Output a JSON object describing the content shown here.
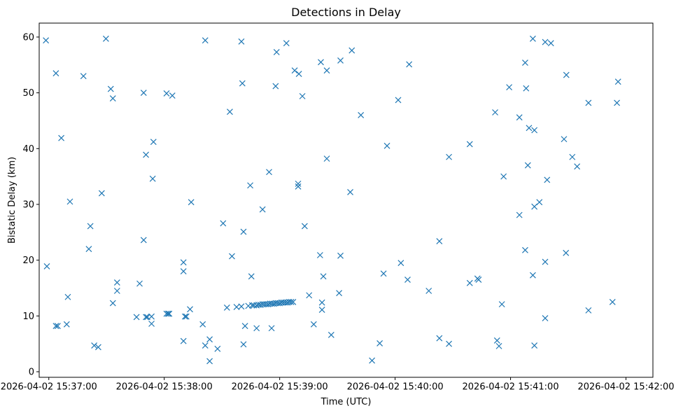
{
  "chart_data": {
    "type": "scatter",
    "title": "Detections in Delay",
    "xlabel": "Time (UTC)",
    "ylabel": "Bistatic Delay (km)",
    "x_unit": "seconds after 2026-04-02 15:37:00",
    "xlim": [
      -5,
      314
    ],
    "ylim": [
      -1,
      62.5
    ],
    "x_ticks": [
      {
        "value": 0,
        "label": "2026-04-02 15:37:00"
      },
      {
        "value": 60,
        "label": "2026-04-02 15:38:00"
      },
      {
        "value": 120,
        "label": "2026-04-02 15:39:00"
      },
      {
        "value": 180,
        "label": "2026-04-02 15:40:00"
      },
      {
        "value": 240,
        "label": "2026-04-02 15:41:00"
      },
      {
        "value": 300,
        "label": "2026-04-02 15:42:00"
      }
    ],
    "y_ticks": [
      {
        "value": 0,
        "label": "0"
      },
      {
        "value": 10,
        "label": "10"
      },
      {
        "value": 20,
        "label": "20"
      },
      {
        "value": 30,
        "label": "30"
      },
      {
        "value": 40,
        "label": "40"
      },
      {
        "value": 50,
        "label": "50"
      },
      {
        "value": 60,
        "label": "60"
      }
    ],
    "grid": false,
    "marker": "x",
    "color": "#1f77b4",
    "series": [
      {
        "name": "Detections",
        "points": [
          [
            -1.5,
            59.4
          ],
          [
            -1.0,
            18.9
          ],
          [
            3.7,
            53.5
          ],
          [
            3.7,
            8.2
          ],
          [
            4.6,
            8.2
          ],
          [
            6.5,
            41.9
          ],
          [
            9.3,
            8.5
          ],
          [
            9.9,
            13.4
          ],
          [
            11.0,
            30.5
          ],
          [
            18.0,
            53.0
          ],
          [
            20.8,
            22.0
          ],
          [
            21.6,
            26.1
          ],
          [
            23.6,
            4.7
          ],
          [
            25.7,
            4.4
          ],
          [
            27.5,
            32.0
          ],
          [
            29.7,
            59.7
          ],
          [
            32.2,
            50.7
          ],
          [
            33.3,
            49.0
          ],
          [
            33.3,
            12.3
          ],
          [
            35.5,
            16.0
          ],
          [
            35.5,
            14.5
          ],
          [
            45.6,
            9.8
          ],
          [
            47.2,
            15.8
          ],
          [
            49.3,
            50.0
          ],
          [
            49.3,
            23.6
          ],
          [
            50.5,
            38.9
          ],
          [
            50.5,
            9.8
          ],
          [
            51.2,
            9.8
          ],
          [
            53.4,
            9.9
          ],
          [
            53.4,
            8.6
          ],
          [
            54.0,
            34.6
          ],
          [
            54.4,
            41.2
          ],
          [
            61.2,
            49.9
          ],
          [
            61.2,
            10.4
          ],
          [
            62.0,
            10.4
          ],
          [
            62.6,
            10.4
          ],
          [
            64.2,
            49.5
          ],
          [
            70.0,
            19.6
          ],
          [
            70.0,
            18.0
          ],
          [
            70.0,
            5.5
          ],
          [
            70.8,
            9.9
          ],
          [
            71.5,
            9.9
          ],
          [
            73.4,
            11.2
          ],
          [
            74.0,
            30.4
          ],
          [
            80.0,
            8.5
          ],
          [
            81.3,
            59.4
          ],
          [
            81.3,
            4.7
          ],
          [
            83.6,
            5.8
          ],
          [
            83.6,
            1.9
          ],
          [
            87.7,
            4.1
          ],
          [
            90.6,
            26.6
          ],
          [
            92.6,
            11.5
          ],
          [
            94.1,
            46.6
          ],
          [
            95.2,
            20.7
          ],
          [
            97.6,
            11.6
          ],
          [
            100.1,
            11.7
          ],
          [
            100.1,
            59.2
          ],
          [
            100.6,
            51.7
          ],
          [
            101.2,
            25.1
          ],
          [
            101.2,
            4.9
          ],
          [
            102.0,
            8.2
          ],
          [
            103.7,
            11.8
          ],
          [
            104.7,
            33.4
          ],
          [
            105.3,
            17.1
          ],
          [
            105.7,
            11.9
          ],
          [
            106.6,
            11.9
          ],
          [
            108.0,
            7.8
          ],
          [
            108.0,
            11.9
          ],
          [
            109.0,
            12.0
          ],
          [
            110.0,
            12.0
          ],
          [
            111.1,
            29.1
          ],
          [
            111.1,
            12.1
          ],
          [
            112.0,
            12.1
          ],
          [
            113.0,
            12.1
          ],
          [
            114.0,
            12.1
          ],
          [
            114.5,
            35.8
          ],
          [
            115.0,
            12.2
          ],
          [
            115.8,
            7.8
          ],
          [
            116.0,
            12.2
          ],
          [
            117.0,
            12.2
          ],
          [
            117.9,
            51.2
          ],
          [
            118.0,
            12.3
          ],
          [
            118.4,
            57.3
          ],
          [
            119.0,
            12.3
          ],
          [
            120.0,
            12.3
          ],
          [
            121.0,
            12.4
          ],
          [
            122.0,
            12.4
          ],
          [
            123.0,
            12.4
          ],
          [
            123.5,
            58.9
          ],
          [
            124.0,
            12.4
          ],
          [
            125.0,
            12.5
          ],
          [
            126.0,
            12.5
          ],
          [
            127.0,
            12.5
          ],
          [
            127.8,
            54.0
          ],
          [
            129.6,
            33.7
          ],
          [
            129.6,
            33.2
          ],
          [
            130.0,
            53.4
          ],
          [
            131.8,
            49.4
          ],
          [
            133.0,
            26.1
          ],
          [
            135.3,
            13.7
          ],
          [
            137.7,
            8.5
          ],
          [
            141.0,
            20.9
          ],
          [
            141.4,
            55.5
          ],
          [
            142.0,
            12.4
          ],
          [
            142.0,
            11.1
          ],
          [
            142.7,
            17.1
          ],
          [
            144.5,
            54.0
          ],
          [
            144.5,
            38.2
          ],
          [
            146.8,
            6.6
          ],
          [
            150.9,
            14.1
          ],
          [
            151.6,
            55.8
          ],
          [
            151.6,
            20.8
          ],
          [
            156.7,
            32.2
          ],
          [
            157.5,
            57.6
          ],
          [
            162.2,
            46.0
          ],
          [
            168.0,
            2.0
          ],
          [
            172.0,
            5.1
          ],
          [
            174.0,
            17.6
          ],
          [
            175.8,
            40.5
          ],
          [
            181.6,
            48.7
          ],
          [
            183.0,
            19.5
          ],
          [
            186.5,
            16.5
          ],
          [
            187.3,
            55.1
          ],
          [
            197.5,
            14.5
          ],
          [
            203.0,
            6.0
          ],
          [
            203.0,
            23.4
          ],
          [
            208.0,
            5.0
          ],
          [
            208.0,
            38.5
          ],
          [
            218.8,
            15.9
          ],
          [
            218.8,
            40.8
          ],
          [
            222.8,
            16.7
          ],
          [
            223.4,
            16.5
          ],
          [
            232.0,
            46.5
          ],
          [
            233.0,
            5.6
          ],
          [
            234.0,
            4.6
          ],
          [
            235.5,
            12.1
          ],
          [
            236.4,
            35.0
          ],
          [
            239.3,
            51.0
          ],
          [
            244.6,
            28.1
          ],
          [
            244.6,
            45.6
          ],
          [
            247.6,
            21.8
          ],
          [
            247.6,
            55.4
          ],
          [
            248.1,
            50.8
          ],
          [
            249.0,
            37.0
          ],
          [
            249.6,
            43.7
          ],
          [
            251.6,
            59.7
          ],
          [
            251.6,
            17.3
          ],
          [
            252.4,
            43.3
          ],
          [
            252.4,
            29.6
          ],
          [
            252.4,
            4.7
          ],
          [
            255.0,
            30.4
          ],
          [
            258.0,
            59.1
          ],
          [
            258.0,
            19.7
          ],
          [
            258.0,
            9.6
          ],
          [
            259.0,
            34.4
          ],
          [
            261.0,
            58.9
          ],
          [
            267.8,
            41.7
          ],
          [
            268.8,
            21.3
          ],
          [
            269.0,
            53.2
          ],
          [
            272.1,
            38.5
          ],
          [
            274.6,
            36.8
          ],
          [
            280.5,
            48.2
          ],
          [
            280.5,
            11.0
          ],
          [
            293.0,
            12.5
          ],
          [
            295.3,
            48.2
          ],
          [
            295.9,
            52.0
          ]
        ]
      }
    ]
  }
}
